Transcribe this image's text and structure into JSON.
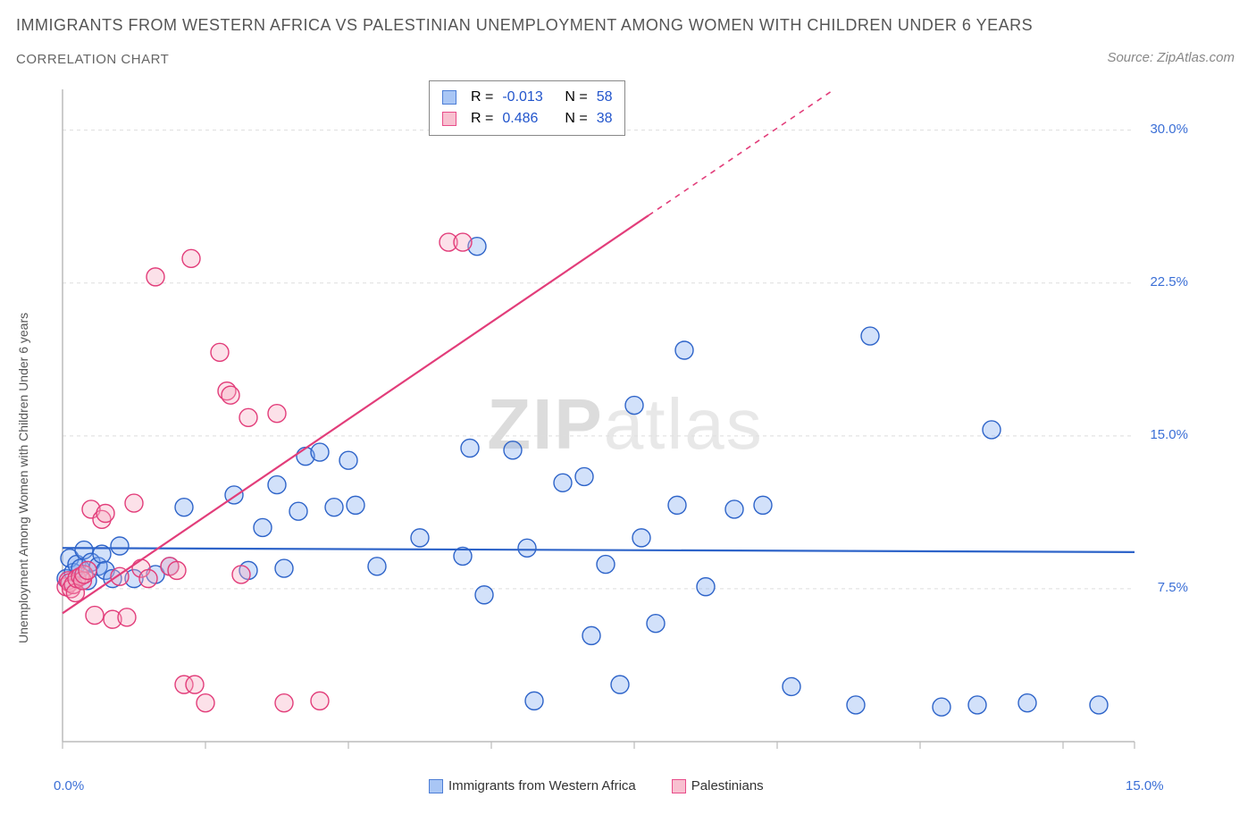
{
  "title": "IMMIGRANTS FROM WESTERN AFRICA VS PALESTINIAN UNEMPLOYMENT AMONG WOMEN WITH CHILDREN UNDER 6 YEARS",
  "subtitle": "CORRELATION CHART",
  "source": "Source: ZipAtlas.com",
  "watermark_a": "ZIP",
  "watermark_b": "atlas",
  "chart": {
    "type": "scatter",
    "background_color": "#ffffff",
    "grid_color": "#dddddd",
    "axis_color": "#bbbbbb",
    "tick_label_color": "#3b6fd6",
    "axis_label_color": "#555555",
    "y_axis_label": "Unemployment Among Women with Children Under 6 years",
    "x_axis_legend": [
      {
        "label": "Immigrants from Western Africa",
        "fill": "#a9c6f5",
        "stroke": "#4d7ed6"
      },
      {
        "label": "Palestinians",
        "fill": "#f8c0d0",
        "stroke": "#e84d8a"
      }
    ],
    "xlim": [
      0,
      15
    ],
    "ylim": [
      0,
      32
    ],
    "x_ticks": [
      0,
      2,
      4,
      6,
      8,
      10,
      12,
      14,
      15
    ],
    "x_tick_show_minor": true,
    "x_tick_labels": [
      {
        "x": 0,
        "label": "0.0%"
      },
      {
        "x": 15,
        "label": "15.0%"
      }
    ],
    "y_ticks": [
      7.5,
      15.0,
      22.5,
      30.0
    ],
    "y_tick_labels": [
      "7.5%",
      "15.0%",
      "22.5%",
      "30.0%"
    ],
    "stats_box": {
      "rows": [
        {
          "swatch_fill": "#a9c6f5",
          "swatch_stroke": "#4d7ed6",
          "r": "-0.013",
          "n": "58"
        },
        {
          "swatch_fill": "#f8c0d0",
          "swatch_stroke": "#e84d8a",
          "r": "0.486",
          "n": "38"
        }
      ],
      "r_label": "R =",
      "n_label": "N ="
    },
    "marker_radius": 10,
    "marker_stroke_width": 1.4,
    "marker_fill_opacity": 0.35,
    "trend_line_width": 2.2,
    "series": [
      {
        "name": "blue",
        "fill": "#7daaf0",
        "stroke": "#2e64c9",
        "trend": {
          "y_at_x0": 9.5,
          "y_at_xmax": 9.3,
          "dashed_from_x": null
        },
        "points": [
          [
            0.05,
            8.0
          ],
          [
            0.1,
            9.0
          ],
          [
            0.15,
            8.3
          ],
          [
            0.2,
            8.7
          ],
          [
            0.25,
            8.5
          ],
          [
            0.3,
            9.4
          ],
          [
            0.35,
            7.9
          ],
          [
            0.4,
            8.8
          ],
          [
            0.5,
            8.6
          ],
          [
            0.55,
            9.2
          ],
          [
            0.6,
            8.4
          ],
          [
            0.7,
            8.0
          ],
          [
            0.8,
            9.6
          ],
          [
            1.0,
            8.0
          ],
          [
            1.3,
            8.2
          ],
          [
            1.5,
            8.6
          ],
          [
            1.7,
            11.5
          ],
          [
            2.4,
            12.1
          ],
          [
            2.6,
            8.4
          ],
          [
            2.8,
            10.5
          ],
          [
            3.0,
            12.6
          ],
          [
            3.1,
            8.5
          ],
          [
            3.3,
            11.3
          ],
          [
            3.4,
            14.0
          ],
          [
            3.6,
            14.2
          ],
          [
            3.8,
            11.5
          ],
          [
            4.0,
            13.8
          ],
          [
            4.1,
            11.6
          ],
          [
            4.4,
            8.6
          ],
          [
            5.0,
            10.0
          ],
          [
            5.6,
            9.1
          ],
          [
            5.7,
            14.4
          ],
          [
            5.8,
            24.3
          ],
          [
            5.9,
            7.2
          ],
          [
            6.3,
            14.3
          ],
          [
            6.5,
            9.5
          ],
          [
            6.6,
            2.0
          ],
          [
            7.0,
            12.7
          ],
          [
            7.3,
            13.0
          ],
          [
            7.4,
            5.2
          ],
          [
            7.6,
            8.7
          ],
          [
            7.8,
            2.8
          ],
          [
            8.0,
            16.5
          ],
          [
            8.1,
            10.0
          ],
          [
            8.3,
            5.8
          ],
          [
            8.6,
            11.6
          ],
          [
            8.7,
            19.2
          ],
          [
            9.0,
            7.6
          ],
          [
            9.4,
            11.4
          ],
          [
            9.8,
            11.6
          ],
          [
            10.2,
            2.7
          ],
          [
            11.1,
            1.8
          ],
          [
            11.3,
            19.9
          ],
          [
            12.3,
            1.7
          ],
          [
            12.8,
            1.8
          ],
          [
            13.0,
            15.3
          ],
          [
            13.5,
            1.9
          ],
          [
            14.5,
            1.8
          ]
        ]
      },
      {
        "name": "pink",
        "fill": "#f5a9c0",
        "stroke": "#e23d7a",
        "trend": {
          "y_at_x0": 6.3,
          "y_at_xmax": 42.0,
          "dashed_from_x": 8.2
        },
        "points": [
          [
            0.05,
            7.6
          ],
          [
            0.08,
            7.9
          ],
          [
            0.1,
            7.8
          ],
          [
            0.12,
            7.5
          ],
          [
            0.15,
            7.7
          ],
          [
            0.18,
            7.3
          ],
          [
            0.2,
            8.0
          ],
          [
            0.25,
            8.1
          ],
          [
            0.28,
            7.9
          ],
          [
            0.3,
            8.2
          ],
          [
            0.35,
            8.4
          ],
          [
            0.4,
            11.4
          ],
          [
            0.45,
            6.2
          ],
          [
            0.55,
            10.9
          ],
          [
            0.6,
            11.2
          ],
          [
            0.7,
            6.0
          ],
          [
            0.8,
            8.1
          ],
          [
            0.9,
            6.1
          ],
          [
            1.0,
            11.7
          ],
          [
            1.1,
            8.5
          ],
          [
            1.2,
            8.0
          ],
          [
            1.3,
            22.8
          ],
          [
            1.5,
            8.6
          ],
          [
            1.6,
            8.4
          ],
          [
            1.7,
            2.8
          ],
          [
            1.8,
            23.7
          ],
          [
            1.85,
            2.8
          ],
          [
            2.0,
            1.9
          ],
          [
            2.2,
            19.1
          ],
          [
            2.3,
            17.2
          ],
          [
            2.35,
            17.0
          ],
          [
            2.5,
            8.2
          ],
          [
            2.6,
            15.9
          ],
          [
            3.0,
            16.1
          ],
          [
            3.1,
            1.9
          ],
          [
            3.6,
            2.0
          ],
          [
            5.4,
            24.5
          ],
          [
            5.6,
            24.5
          ]
        ]
      }
    ]
  }
}
